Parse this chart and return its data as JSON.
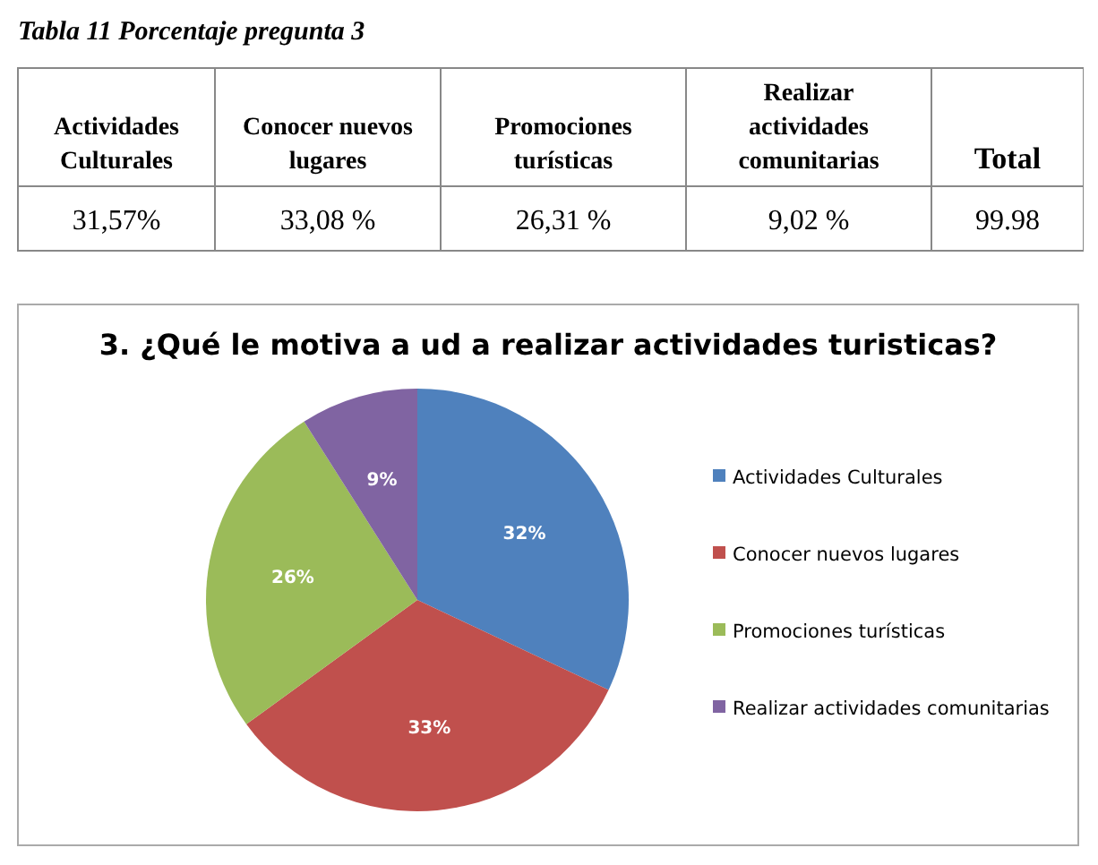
{
  "chart_data": [
    {
      "type": "other",
      "title": "Tabla 11 Porcentaje pregunta 3",
      "categories": [
        "Actividades Culturales",
        "Conocer nuevos lugares",
        "Promociones turísticas",
        "Realizar actividades comunitarias",
        "Total"
      ],
      "annotations": [
        "31,57%",
        "33,08 %",
        "26,31 %",
        "9,02 %",
        "99.98"
      ]
    },
    {
      "type": "pie",
      "title": "3. ¿Qué le motiva a ud a realizar actividades turisticas?",
      "categories": [
        "Actividades Culturales",
        "Conocer nuevos lugares",
        "Promociones turísticas",
        "Realizar actividades comunitarias"
      ],
      "values": [
        32,
        33,
        26,
        9
      ],
      "colors": [
        "#4f81bd",
        "#c0504d",
        "#9bbb59",
        "#8064a2"
      ],
      "value_labels": [
        "32%",
        "33%",
        "26%",
        "9%"
      ],
      "legend": "right"
    }
  ]
}
